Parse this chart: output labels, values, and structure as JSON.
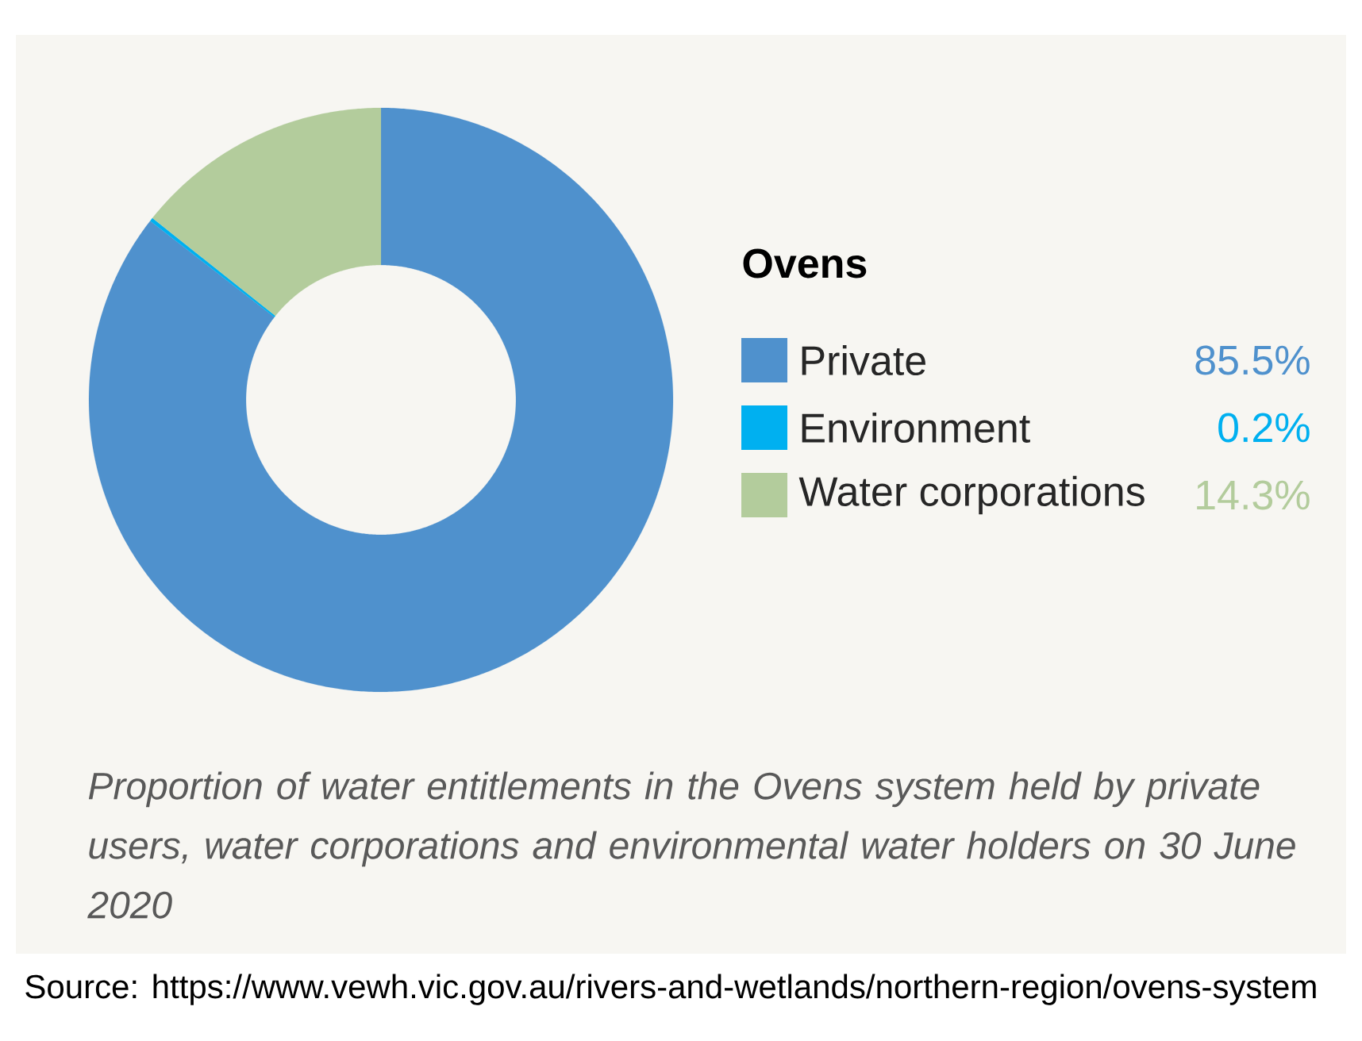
{
  "chart_data": {
    "type": "donut",
    "legend_title": "Ovens",
    "legend": "right",
    "categories": [
      "Private",
      "Environment",
      "Water corporations"
    ],
    "values": [
      85.5,
      0.2,
      14.3
    ],
    "colors": [
      "#4f91cd",
      "#00b0f0",
      "#b3cc9c"
    ],
    "value_labels": [
      "85.5%",
      "0.2%",
      "14.3%"
    ],
    "annotations": [
      "Proportion of water entitlements in the Ovens system held by private users, water corporations and environmental water holders on 30 June 2020",
      "Source: https://www.vewh.vic.gov.au/rivers-and-wetlands/northern-region/ovens-system"
    ]
  }
}
